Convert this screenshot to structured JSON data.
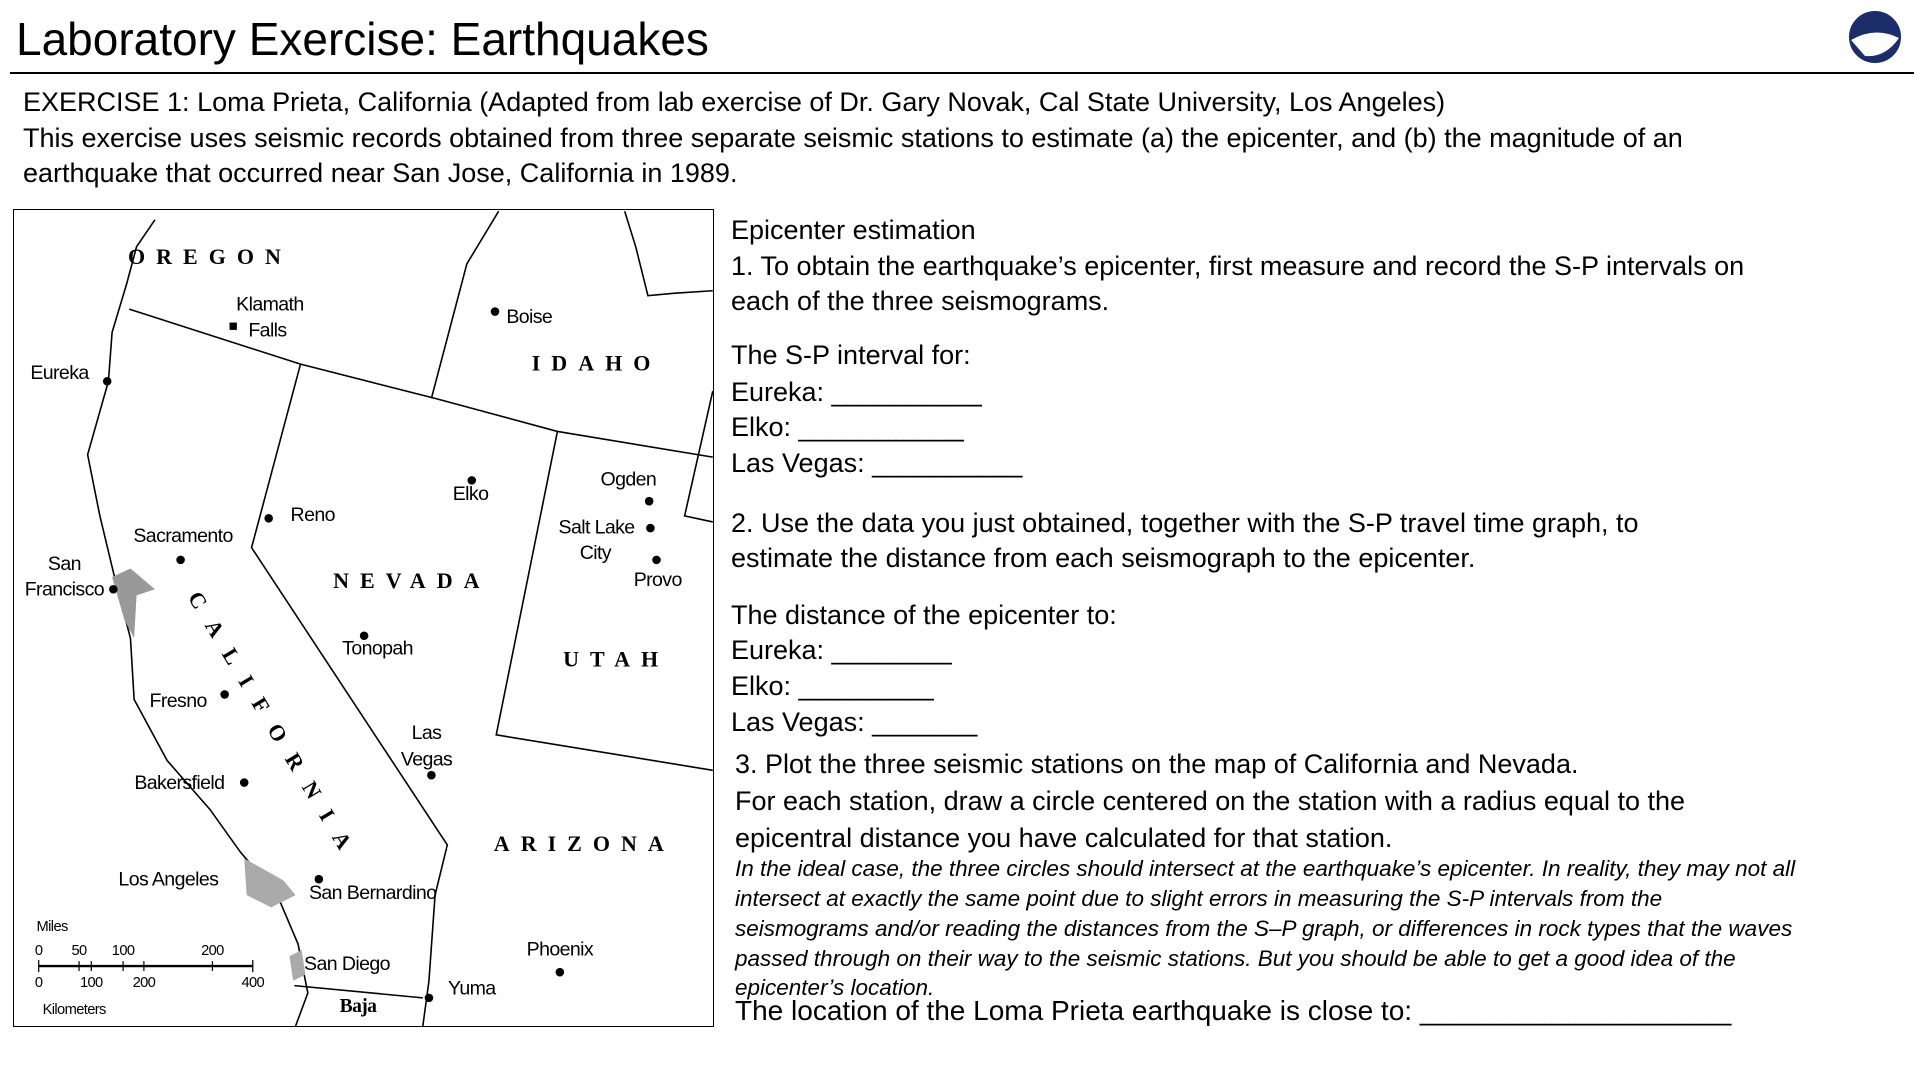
{
  "header": {
    "title": "Laboratory Exercise: Earthquakes"
  },
  "intro": {
    "heading": "EXERCISE 1: Loma Prieta, California (Adapted from lab exercise of Dr. Gary Novak, Cal State University, Los Angeles)",
    "lines": [
      "This exercise uses seismic records obtained from three separate seismic stations to estimate (a) the epicenter, and (b) the magnitude of an",
      "earthquake that occurred near San Jose, California in 1989."
    ]
  },
  "steps": {
    "heading": "Epicenter estimation",
    "step1": [
      "1. To obtain the earthquake’s epicenter, first measure and record the S-P intervals on",
      "each of the three seismograms."
    ],
    "interval_prompt": "The S-P interval for:",
    "interval_blanks": [
      "Eureka: __________",
      "Elko: ___________",
      "Las Vegas: __________"
    ],
    "step2": [
      "2. Use the data you just obtained, together with the S-P travel time graph, to",
      "estimate the distance from each seismograph to the epicenter."
    ],
    "distance_prompt": "The distance of the epicenter to:",
    "distance_blanks": [
      "Eureka: ________",
      "Elko: _________",
      "Las Vegas: _______"
    ],
    "step3": [
      "3. Plot the three seismic stations on the map of California and Nevada.",
      "For each station, draw a circle centered on the station with a radius equal to the",
      "epicentral distance you have calculated for that station."
    ],
    "note": [
      "In the ideal case, the three circles should intersect at the earthquake’s epicenter. In reality, they may not all",
      "intersect at exactly the same point due to slight errors in measuring the S-P intervals from the",
      "seismograms and/or reading the distances from the S–P graph, or differences in rock types that the waves",
      "passed through on their way to the seismic stations. But you should be able to get a good idea of the",
      "epicenter’s location."
    ],
    "final": "The location of the Loma Prieta earthquake is close to: ____________________"
  },
  "map": {
    "labels": [
      "OREGON",
      "Klamath",
      "Falls",
      "Boise",
      "IDAHO",
      "Eureka",
      "Ogden",
      "Elko",
      "Reno",
      "Salt Lake",
      "City",
      "Sacramento",
      "San",
      "Francisco",
      "Provo",
      "NEVADA",
      "CALIFORNIA",
      "Tonopah",
      "UTAH",
      "Fresno",
      "Las",
      "Vegas",
      "Bakersfield",
      "ARIZONA",
      "Los Angeles",
      "San Bernardino",
      "Phoenix",
      "San Diego",
      "Yuma",
      "Baja"
    ],
    "scale": {
      "miles_label": "Miles",
      "miles": [
        "0",
        "50",
        "100",
        "200"
      ],
      "km": [
        "0",
        "100",
        "200",
        "400"
      ],
      "km_label": "Kilometers"
    }
  }
}
